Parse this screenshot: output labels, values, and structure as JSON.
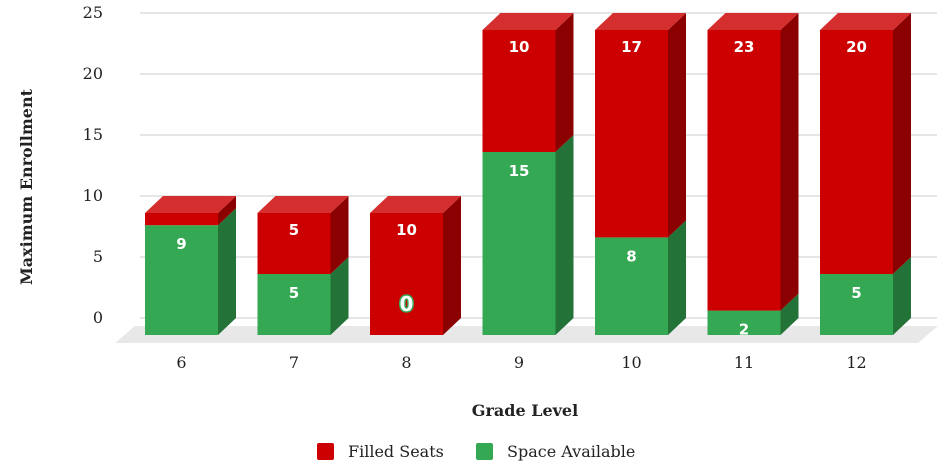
{
  "chart_data": {
    "type": "bar",
    "stacked": true,
    "three_d": true,
    "categories": [
      "6",
      "7",
      "8",
      "9",
      "10",
      "11",
      "12"
    ],
    "series": [
      {
        "name": "Space Available",
        "color": "#34a853",
        "values": [
          9,
          5,
          0,
          15,
          8,
          2,
          5
        ]
      },
      {
        "name": "Filled Seats",
        "color": "#cc0000",
        "values": [
          1,
          5,
          10,
          10,
          17,
          23,
          20
        ]
      }
    ],
    "data_labels": {
      "Space Available": [
        "9",
        "5",
        "0",
        "15",
        "8",
        "2",
        "5"
      ],
      "Filled Seats": [
        "",
        "5",
        "10",
        "10",
        "17",
        "23",
        "20"
      ]
    },
    "xlabel": "Grade Level",
    "ylabel": "Maximum Enrollment",
    "ylim": [
      0,
      25
    ],
    "yticks": [
      "0",
      "5",
      "10",
      "15",
      "20",
      "25"
    ],
    "grid": true,
    "legend_position": "bottom",
    "legend": [
      {
        "name": "Filled Seats",
        "color": "#cc0000"
      },
      {
        "name": "Space Available",
        "color": "#34a853"
      }
    ]
  }
}
